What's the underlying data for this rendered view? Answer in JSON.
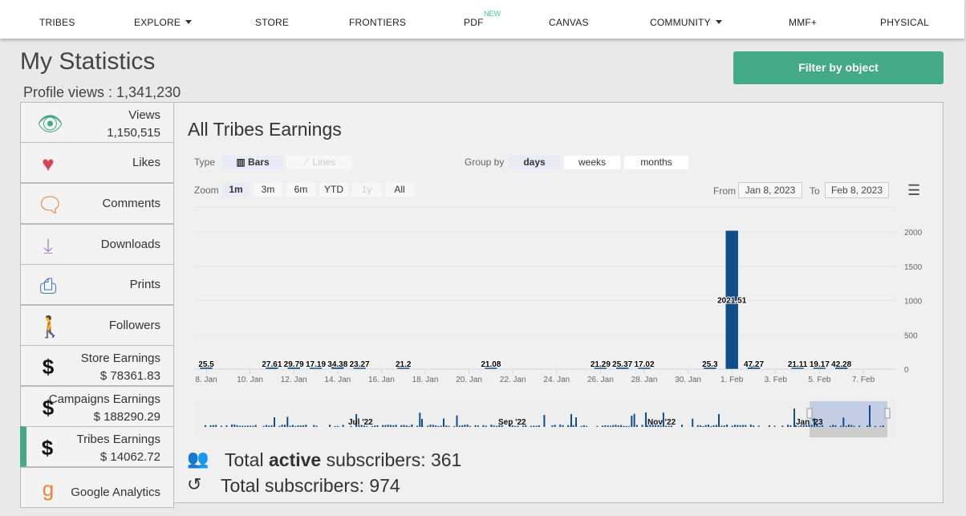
{
  "nav": {
    "items": [
      "TRIBES",
      "EXPLORE",
      "STORE",
      "FRONTIERS",
      "PDF",
      "CANVAS",
      "COMMUNITY",
      "MMF+",
      "PHYSICAL"
    ],
    "new_badge": "NEW"
  },
  "page": {
    "title": "My Statistics",
    "profile_views": "Profile views : 1,341,230",
    "filter_button": "Filter by object"
  },
  "sidebar": [
    {
      "label": "Views",
      "value": "1,150,515",
      "icon": "eye-icon"
    },
    {
      "label": "Likes",
      "icon": "heart-icon"
    },
    {
      "label": "Comments",
      "icon": "comment-icon"
    },
    {
      "label": "Downloads",
      "icon": "download-icon"
    },
    {
      "label": "Prints",
      "icon": "printer-icon"
    },
    {
      "label": "Followers",
      "icon": "person-icon"
    },
    {
      "label": "Store Earnings",
      "value": "$ 78361.83",
      "icon": "dollar-icon"
    },
    {
      "label": "Campaigns Earnings",
      "value": "$ 188290.29",
      "icon": "dollar-icon"
    },
    {
      "label": "Tribes Earnings",
      "value": "$ 14062.72",
      "icon": "dollar-icon",
      "active": true
    },
    {
      "label": "Google Analytics",
      "icon": "google-icon"
    }
  ],
  "panel": {
    "title": "All Tribes Earnings",
    "type_label": "Type",
    "bars": "Bars",
    "lines": "Lines",
    "group_label": "Group by",
    "groups": [
      "days",
      "weeks",
      "months"
    ],
    "zoom_label": "Zoom",
    "zooms": [
      "1m",
      "3m",
      "6m",
      "YTD",
      "1y",
      "All"
    ],
    "from_label": "From",
    "from": "Jan 8, 2023",
    "to_label": "To",
    "to": "Feb 8, 2023"
  },
  "subscribers": {
    "active_pre": "Total ",
    "active_bold": "active",
    "active_post": " subscribers: 361",
    "total": "Total subscribers: 974"
  },
  "colors": {
    "accent": "#44a987",
    "bar": "#114f8a"
  },
  "chart_data": {
    "type": "bar",
    "title": "All Tribes Earnings",
    "start": "2023-01-08",
    "days": 32,
    "x_ticks": [
      "8. Jan",
      "10. Jan",
      "12. Jan",
      "14. Jan",
      "16. Jan",
      "18. Jan",
      "20. Jan",
      "22. Jan",
      "24. Jan",
      "26. Jan",
      "28. Jan",
      "30. Jan",
      "1. Feb",
      "3. Feb",
      "5. Feb",
      "7. Feb"
    ],
    "y_ticks": [
      0,
      500,
      1000,
      1500,
      2000
    ],
    "ylim": [
      0,
      2100
    ],
    "points": [
      {
        "day": 0,
        "value": 25.5
      },
      {
        "day": 3,
        "value": 27.61
      },
      {
        "day": 4,
        "value": 29.79
      },
      {
        "day": 5,
        "value": 17.19
      },
      {
        "day": 6,
        "value": 34.38
      },
      {
        "day": 7,
        "value": 23.27
      },
      {
        "day": 9,
        "value": 21.2
      },
      {
        "day": 13,
        "value": 21.08
      },
      {
        "day": 18,
        "value": 21.29
      },
      {
        "day": 19,
        "value": 25.37
      },
      {
        "day": 20,
        "value": 17.02
      },
      {
        "day": 23,
        "value": 25.3
      },
      {
        "day": 24,
        "value": 2021.51
      },
      {
        "day": 25,
        "value": 47.27
      },
      {
        "day": 27,
        "value": 21.11
      },
      {
        "day": 28,
        "value": 19.17
      },
      {
        "day": 29,
        "value": 42.28
      }
    ],
    "navigator_labels": [
      "Jul '22",
      "Sep '22",
      "Nov '22",
      "Jan '23"
    ]
  }
}
